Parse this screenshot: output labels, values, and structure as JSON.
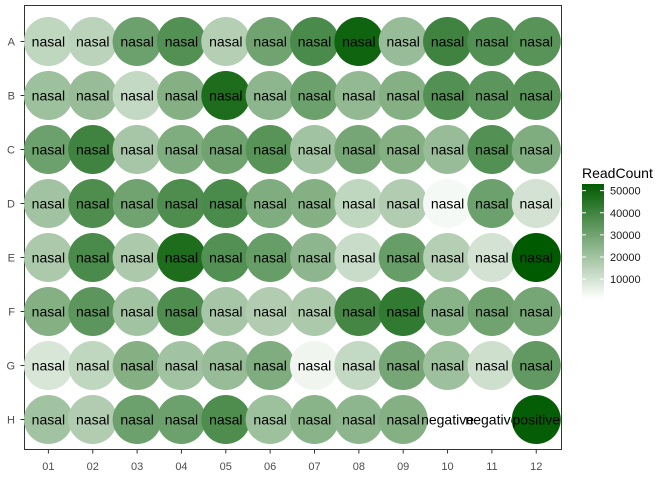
{
  "chart_data": {
    "type": "heatmap",
    "title": "",
    "xlabel": "",
    "ylabel": "",
    "columns": [
      "01",
      "02",
      "03",
      "04",
      "05",
      "06",
      "07",
      "08",
      "09",
      "10",
      "11",
      "12"
    ],
    "rows": [
      "A",
      "B",
      "C",
      "D",
      "E",
      "F",
      "G",
      "H"
    ],
    "labels": [
      [
        "nasal",
        "nasal",
        "nasal",
        "nasal",
        "nasal",
        "nasal",
        "nasal",
        "nasal",
        "nasal",
        "nasal",
        "nasal",
        "nasal"
      ],
      [
        "nasal",
        "nasal",
        "nasal",
        "nasal",
        "nasal",
        "nasal",
        "nasal",
        "nasal",
        "nasal",
        "nasal",
        "nasal",
        "nasal"
      ],
      [
        "nasal",
        "nasal",
        "nasal",
        "nasal",
        "nasal",
        "nasal",
        "nasal",
        "nasal",
        "nasal",
        "nasal",
        "nasal",
        "nasal"
      ],
      [
        "nasal",
        "nasal",
        "nasal",
        "nasal",
        "nasal",
        "nasal",
        "nasal",
        "nasal",
        "nasal",
        "nasal",
        "nasal",
        "nasal"
      ],
      [
        "nasal",
        "nasal",
        "nasal",
        "nasal",
        "nasal",
        "nasal",
        "nasal",
        "nasal",
        "nasal",
        "nasal",
        "nasal",
        "nasal"
      ],
      [
        "nasal",
        "nasal",
        "nasal",
        "nasal",
        "nasal",
        "nasal",
        "nasal",
        "nasal",
        "nasal",
        "nasal",
        "nasal",
        "nasal"
      ],
      [
        "nasal",
        "nasal",
        "nasal",
        "nasal",
        "nasal",
        "nasal",
        "nasal",
        "nasal",
        "nasal",
        "nasal",
        "nasal",
        "nasal"
      ],
      [
        "nasal",
        "nasal",
        "nasal",
        "nasal",
        "nasal",
        "nasal",
        "nasal",
        "nasal",
        "nasal",
        "negative",
        "negative",
        "positive"
      ]
    ],
    "values": [
      [
        14000,
        15000,
        31000,
        36000,
        16000,
        30000,
        38000,
        50000,
        22000,
        40000,
        36000,
        35000
      ],
      [
        21000,
        22000,
        13000,
        26000,
        47000,
        24000,
        31000,
        23000,
        26000,
        36000,
        34000,
        35000
      ],
      [
        31000,
        40000,
        19000,
        27000,
        30000,
        35000,
        20000,
        29000,
        26000,
        22000,
        36000,
        27000
      ],
      [
        20000,
        37000,
        30000,
        37000,
        38000,
        27000,
        26000,
        14000,
        17000,
        3000,
        31000,
        10000
      ],
      [
        18000,
        38000,
        18000,
        47000,
        36000,
        32000,
        24000,
        12000,
        32000,
        16000,
        10000,
        53000
      ],
      [
        26000,
        34000,
        20000,
        37000,
        19000,
        17000,
        18000,
        39000,
        43000,
        25000,
        30000,
        29000
      ],
      [
        9000,
        14000,
        26000,
        20000,
        22000,
        27000,
        4000,
        13000,
        29000,
        21000,
        11000,
        33000
      ],
      [
        20000,
        17000,
        31000,
        31000,
        37000,
        21000,
        25000,
        24000,
        26000,
        null,
        null,
        52000
      ]
    ],
    "legend": {
      "title": "ReadCount",
      "position": "right",
      "min": 1000,
      "max": 53000,
      "breaks": [
        10000,
        20000,
        30000,
        40000,
        50000
      ],
      "break_labels": [
        "10000",
        "20000",
        "30000",
        "40000",
        "50000"
      ],
      "low_color": "#ffffff",
      "high_color": "#005a00"
    },
    "panel_background": "#ffffff",
    "panel_border": "#333333",
    "grid": false
  }
}
